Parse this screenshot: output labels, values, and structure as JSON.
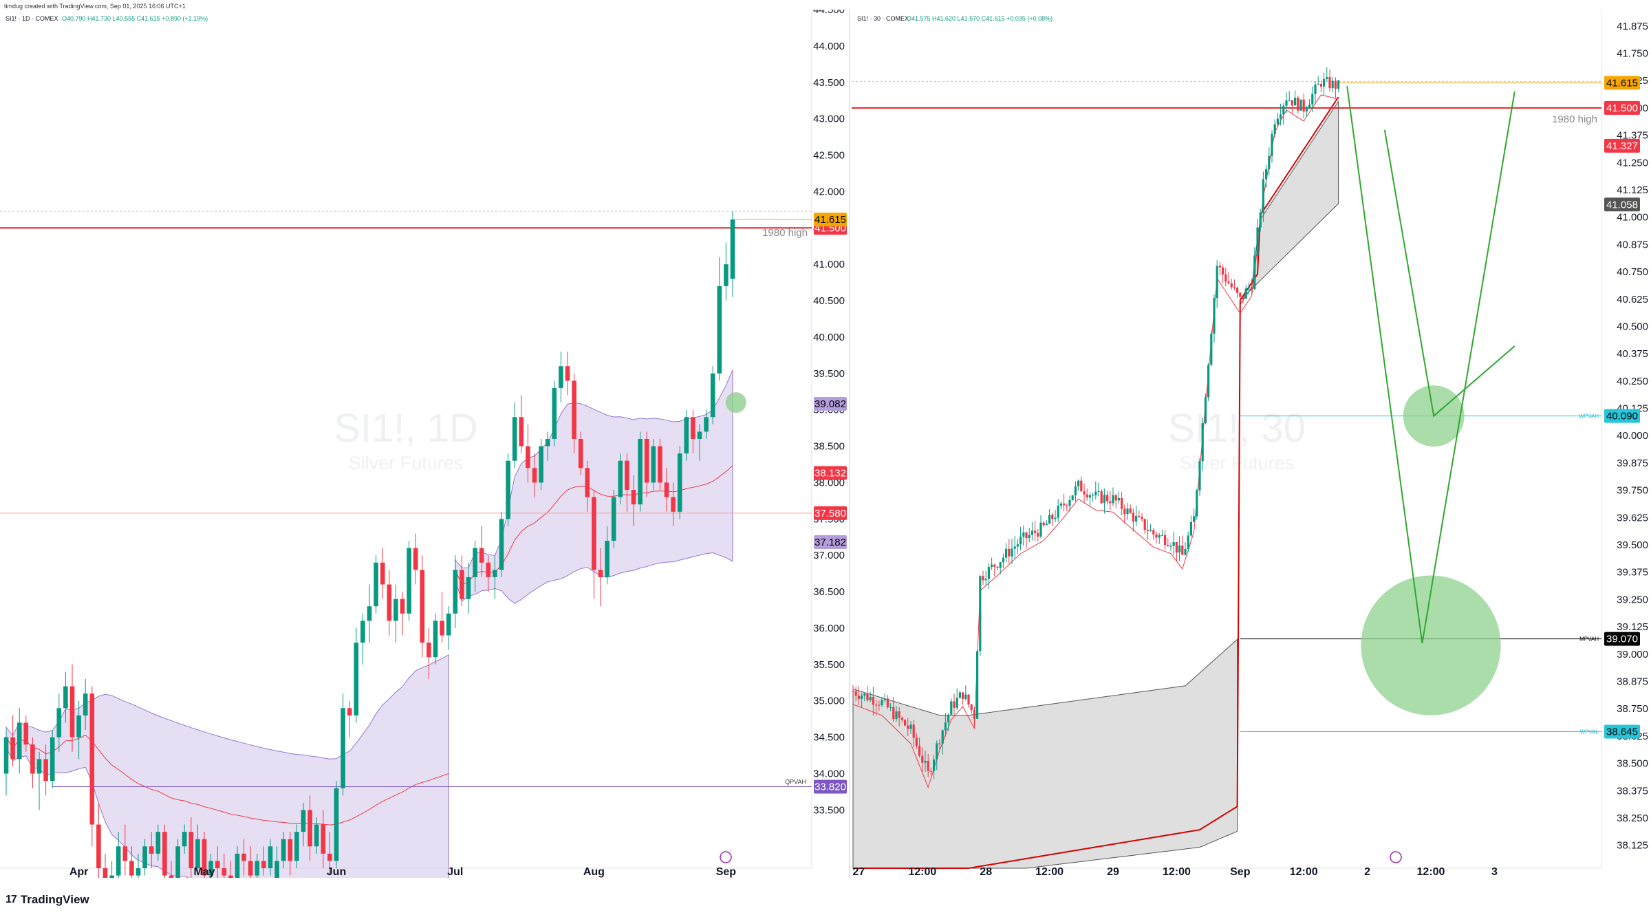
{
  "header": {
    "text": "timdug created with TradingView.com, Sep 01, 2025 16:06 UTC+1"
  },
  "footer": {
    "brand": "TradingView"
  },
  "colors": {
    "up": "#089981",
    "down": "#f23645",
    "purple_band": "#d1c4e9",
    "gray_band": "#d9d9d9",
    "vwap_red": "#f23645",
    "resistance": "#e8202a",
    "price_tag": "#f7a600",
    "cyan": "#26c6da",
    "green": "#2ea82e",
    "green_circle": "#8fd18f",
    "purple_tag": "#9575cd"
  },
  "chart_data": [
    {
      "type": "candlestick",
      "symbol_line": "SI1! · 1D · COMEX",
      "ohlc_line": "O40.790 H41.730 L40.555 C41.615 +0.890 (+2.19%)",
      "watermark": {
        "title": "SI1!, 1D",
        "subtitle": "Silver Futures"
      },
      "ylim": [
        32.7,
        44.5
      ],
      "y_ticks": [
        "44.500",
        "44.000",
        "43.500",
        "43.000",
        "42.500",
        "42.000",
        "41.500",
        "41.000",
        "40.500",
        "40.000",
        "39.500",
        "39.000",
        "38.500",
        "38.000",
        "37.500",
        "37.000",
        "36.500",
        "36.000",
        "35.500",
        "35.000",
        "34.500",
        "34.000",
        "33.500"
      ],
      "x_labels": [
        {
          "label": "Apr",
          "i": 11
        },
        {
          "label": "May",
          "i": 30
        },
        {
          "label": "Jun",
          "i": 50
        },
        {
          "label": "Jul",
          "i": 68
        },
        {
          "label": "Aug",
          "i": 89
        },
        {
          "label": "Sep",
          "i": 109
        }
      ],
      "candles": [
        [
          34.0,
          34.6,
          33.7,
          34.5
        ],
        [
          34.5,
          34.8,
          34.1,
          34.2
        ],
        [
          34.2,
          34.9,
          34.0,
          34.7
        ],
        [
          34.7,
          34.8,
          34.3,
          34.4
        ],
        [
          34.4,
          34.5,
          33.8,
          34.0
        ],
        [
          34.0,
          34.3,
          33.5,
          34.2
        ],
        [
          34.2,
          34.4,
          33.7,
          33.9
        ],
        [
          33.9,
          34.6,
          33.8,
          34.5
        ],
        [
          34.5,
          35.1,
          34.3,
          34.9
        ],
        [
          34.9,
          35.4,
          34.7,
          35.2
        ],
        [
          35.2,
          35.5,
          34.3,
          34.5
        ],
        [
          34.5,
          35.0,
          34.2,
          34.8
        ],
        [
          34.8,
          35.3,
          34.6,
          35.1
        ],
        [
          35.1,
          35.2,
          33.0,
          33.3
        ],
        [
          33.3,
          33.6,
          32.4,
          32.7
        ],
        [
          32.7,
          32.9,
          32.3,
          32.5
        ],
        [
          32.5,
          32.8,
          32.3,
          32.6
        ],
        [
          32.6,
          33.2,
          32.5,
          33.0
        ],
        [
          33.0,
          33.3,
          32.6,
          32.8
        ],
        [
          32.8,
          33.0,
          32.4,
          32.6
        ],
        [
          32.6,
          32.9,
          32.3,
          32.7
        ],
        [
          32.7,
          33.1,
          32.6,
          33.0
        ],
        [
          33.0,
          33.2,
          32.7,
          32.9
        ],
        [
          32.9,
          33.3,
          32.8,
          33.2
        ],
        [
          33.2,
          33.3,
          32.5,
          32.6
        ],
        [
          32.6,
          32.8,
          32.3,
          32.5
        ],
        [
          32.5,
          33.1,
          32.4,
          33.0
        ],
        [
          33.0,
          33.3,
          32.9,
          33.2
        ],
        [
          33.2,
          33.4,
          32.5,
          32.7
        ],
        [
          32.7,
          33.3,
          32.6,
          33.1
        ],
        [
          33.1,
          33.2,
          32.4,
          32.6
        ],
        [
          32.6,
          32.9,
          32.4,
          32.8
        ],
        [
          32.8,
          33.0,
          32.5,
          32.7
        ],
        [
          32.7,
          32.9,
          32.4,
          32.6
        ],
        [
          32.6,
          32.8,
          32.3,
          32.5
        ],
        [
          32.5,
          33.0,
          32.4,
          32.9
        ],
        [
          32.9,
          33.1,
          32.6,
          32.8
        ],
        [
          32.8,
          33.0,
          32.5,
          32.6
        ],
        [
          32.6,
          32.9,
          32.4,
          32.8
        ],
        [
          32.8,
          33.0,
          32.6,
          32.7
        ],
        [
          32.7,
          33.1,
          32.6,
          33.0
        ],
        [
          32.4,
          33.0,
          32.3,
          32.8
        ],
        [
          32.8,
          33.2,
          32.7,
          33.1
        ],
        [
          33.1,
          33.2,
          32.6,
          32.8
        ],
        [
          32.8,
          33.3,
          32.7,
          33.2
        ],
        [
          33.2,
          33.6,
          33.0,
          33.5
        ],
        [
          33.5,
          33.7,
          32.8,
          33.0
        ],
        [
          33.0,
          33.4,
          32.9,
          33.3
        ],
        [
          33.3,
          33.5,
          32.7,
          32.9
        ],
        [
          32.9,
          33.2,
          32.6,
          32.8
        ],
        [
          32.8,
          33.9,
          32.7,
          33.8
        ],
        [
          33.8,
          35.1,
          33.7,
          34.9
        ],
        [
          34.9,
          35.0,
          34.5,
          34.8
        ],
        [
          34.8,
          36.0,
          34.7,
          35.8
        ],
        [
          35.8,
          36.2,
          35.5,
          36.1
        ],
        [
          36.1,
          36.6,
          35.8,
          36.3
        ],
        [
          36.3,
          37.0,
          36.2,
          36.9
        ],
        [
          36.9,
          37.1,
          36.4,
          36.6
        ],
        [
          36.6,
          36.8,
          35.9,
          36.1
        ],
        [
          36.1,
          36.6,
          35.8,
          36.4
        ],
        [
          36.4,
          36.5,
          35.9,
          36.2
        ],
        [
          36.2,
          37.2,
          36.1,
          37.1
        ],
        [
          37.1,
          37.3,
          36.6,
          36.8
        ],
        [
          36.8,
          37.0,
          35.6,
          35.8
        ],
        [
          35.8,
          36.0,
          35.3,
          35.6
        ],
        [
          35.6,
          36.2,
          35.5,
          36.1
        ],
        [
          36.1,
          36.5,
          35.8,
          35.9
        ],
        [
          35.9,
          36.3,
          35.7,
          36.2
        ],
        [
          36.2,
          37.0,
          36.0,
          36.8
        ],
        [
          36.8,
          37.0,
          36.3,
          36.4
        ],
        [
          36.4,
          36.9,
          36.2,
          36.7
        ],
        [
          36.7,
          37.2,
          36.5,
          37.1
        ],
        [
          37.1,
          37.4,
          36.7,
          36.9
        ],
        [
          36.9,
          37.0,
          36.5,
          36.7
        ],
        [
          36.7,
          37.0,
          36.4,
          36.8
        ],
        [
          36.8,
          37.6,
          36.7,
          37.5
        ],
        [
          37.5,
          38.4,
          37.4,
          38.3
        ],
        [
          38.3,
          39.1,
          38.2,
          38.9
        ],
        [
          38.9,
          39.2,
          38.4,
          38.5
        ],
        [
          38.5,
          38.8,
          38.0,
          38.2
        ],
        [
          38.2,
          38.4,
          37.8,
          38.0
        ],
        [
          38.0,
          38.6,
          37.9,
          38.5
        ],
        [
          38.5,
          38.7,
          38.3,
          38.6
        ],
        [
          38.6,
          39.4,
          38.5,
          39.3
        ],
        [
          39.3,
          39.8,
          39.1,
          39.6
        ],
        [
          39.6,
          39.8,
          39.2,
          39.4
        ],
        [
          39.4,
          39.5,
          38.4,
          38.6
        ],
        [
          38.6,
          38.7,
          38.1,
          38.2
        ],
        [
          38.2,
          38.3,
          37.6,
          37.8
        ],
        [
          37.8,
          37.9,
          36.4,
          36.8
        ],
        [
          36.8,
          37.1,
          36.3,
          36.7
        ],
        [
          36.7,
          37.4,
          36.6,
          37.2
        ],
        [
          37.2,
          37.9,
          37.1,
          37.8
        ],
        [
          37.8,
          38.4,
          37.7,
          38.3
        ],
        [
          38.3,
          38.4,
          37.6,
          37.9
        ],
        [
          37.9,
          38.1,
          37.4,
          37.7
        ],
        [
          37.7,
          38.7,
          37.6,
          38.6
        ],
        [
          38.6,
          38.7,
          37.8,
          38.0
        ],
        [
          38.0,
          38.6,
          37.9,
          38.5
        ],
        [
          38.5,
          38.6,
          37.9,
          38.0
        ],
        [
          38.0,
          38.2,
          37.6,
          37.8
        ],
        [
          37.8,
          38.0,
          37.4,
          37.6
        ],
        [
          37.6,
          38.5,
          37.5,
          38.4
        ],
        [
          38.4,
          39.0,
          38.3,
          38.9
        ],
        [
          38.9,
          39.0,
          38.4,
          38.6
        ],
        [
          38.6,
          38.8,
          38.3,
          38.7
        ],
        [
          38.7,
          39.0,
          38.6,
          38.9
        ],
        [
          38.9,
          39.6,
          38.8,
          39.5
        ],
        [
          39.5,
          41.1,
          39.4,
          40.7
        ],
        [
          40.7,
          41.3,
          40.5,
          41.0
        ],
        [
          40.8,
          41.73,
          40.55,
          41.615
        ]
      ],
      "levels": [
        {
          "price": 41.5,
          "color": "#e8202a",
          "width": 2,
          "label": "41.500",
          "tag": "#f23645"
        },
        {
          "price": 37.58,
          "color": "#f4a0a0",
          "width": 1,
          "label": "37.580",
          "tag": "#f23645"
        },
        {
          "price": 33.82,
          "color": "#7e57c2",
          "width": 1,
          "label": "33.820",
          "tag": "#7e57c2",
          "name": "QPVAH"
        }
      ],
      "price_tags": [
        {
          "price": 41.615,
          "label": "41.615",
          "bg": "#f7a600",
          "fg": "#000000"
        },
        {
          "price": 39.082,
          "label": "39.082",
          "bg": "#b39ddb",
          "fg": "#000000"
        },
        {
          "price": 38.132,
          "label": "38.132",
          "bg": "#f23645",
          "fg": "#ffffff"
        },
        {
          "price": 37.182,
          "label": "37.182",
          "bg": "#b39ddb",
          "fg": "#000000"
        }
      ],
      "annotations": [
        {
          "text": "1980 high",
          "price": 41.4
        }
      ],
      "circle": {
        "i": 110.5,
        "price": 39.1
      }
    },
    {
      "type": "candlestick",
      "symbol_line": "SI1! · 30 · COMEX",
      "ohlc_line": "O41.575 H41.620 L41.570 C41.615 +0.035 (+0.08%)",
      "watermark": {
        "title": "SI1!, 30",
        "subtitle": "Silver Futures"
      },
      "ylim": [
        38.02,
        41.95
      ],
      "y_ticks": [
        "41.875",
        "41.750",
        "41.625",
        "41.500",
        "41.375",
        "41.250",
        "41.125",
        "41.000",
        "40.875",
        "40.750",
        "40.625",
        "40.500",
        "40.375",
        "40.250",
        "40.125",
        "40.000",
        "39.875",
        "39.750",
        "39.625",
        "39.500",
        "39.375",
        "39.250",
        "39.125",
        "39.000",
        "38.875",
        "38.750",
        "38.625",
        "38.500",
        "38.375",
        "38.250",
        "38.125"
      ],
      "x_labels": [
        {
          "label": "27",
          "i": 2
        },
        {
          "label": "12:00",
          "i": 24
        },
        {
          "label": "28",
          "i": 46
        },
        {
          "label": "12:00",
          "i": 68
        },
        {
          "label": "29",
          "i": 90
        },
        {
          "label": "12:00",
          "i": 112
        },
        {
          "label": "Sep",
          "i": 134
        },
        {
          "label": "12:00",
          "i": 156
        },
        {
          "label": "2",
          "i": 178
        },
        {
          "label": "12:00",
          "i": 200
        },
        {
          "label": "3",
          "i": 222
        }
      ],
      "levels": [
        {
          "price": 41.5,
          "color": "#e8202a",
          "width": 2,
          "label": "41.500",
          "tag": "#f23645"
        },
        {
          "price": 40.09,
          "color": "#26c6da",
          "width": 1,
          "label": "40.090",
          "tag": "#26c6da",
          "name": "WPVAH",
          "from_i": 134
        },
        {
          "price": 39.07,
          "color": "#000000",
          "width": 1,
          "label": "39.070",
          "tag": "#000000",
          "name": "MPVAH",
          "from_i": 134
        },
        {
          "price": 38.645,
          "color": "#26c6da",
          "width": 1,
          "label": "38.645",
          "tag": "#26c6da",
          "name": "WPVAL",
          "from_i": 134
        }
      ],
      "price_tags": [
        {
          "price": 41.615,
          "label": "41.615",
          "bg": "#f7a600",
          "fg": "#000000"
        },
        {
          "price": 41.327,
          "label": "41.327",
          "bg": "#f23645",
          "fg": "#ffffff"
        },
        {
          "price": 41.058,
          "label": "41.058",
          "bg": "#555555",
          "fg": "#ffffff"
        }
      ],
      "annotations": [
        {
          "text": "1980 high",
          "price": 41.45
        }
      ],
      "circles": [
        {
          "i": 201,
          "price": 40.09,
          "r_price": 0.14
        },
        {
          "i": 200,
          "price": 39.04,
          "r_price": 0.32
        }
      ],
      "path_lines": [
        [
          [
            171,
            41.6
          ],
          [
            197,
            39.05
          ],
          [
            229,
            41.575
          ]
        ],
        [
          [
            184,
            41.4
          ],
          [
            201,
            40.09
          ],
          [
            229,
            40.41
          ]
        ]
      ]
    }
  ]
}
